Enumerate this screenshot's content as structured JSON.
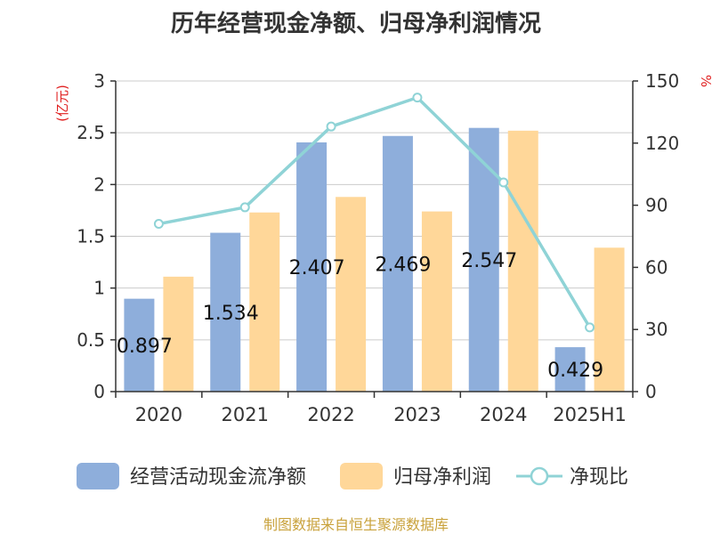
{
  "colors": {
    "bar1": "#8eaedb",
    "bar2": "#ffd799",
    "line": "#8fd3d6",
    "unit": "#e02020",
    "source": "#c9a23c"
  },
  "source_note": "制图数据来自恒生聚源数据库",
  "chart_data": {
    "type": "bar",
    "title": "历年经营现金净额、归母净利润情况",
    "categories": [
      "2020",
      "2021",
      "2022",
      "2023",
      "2024",
      "2025H1"
    ],
    "left_axis": {
      "unit": "(亿元)",
      "ylim": [
        0,
        3
      ],
      "ticks": [
        "0",
        "0.5",
        "1",
        "1.5",
        "2",
        "2.5",
        "3"
      ]
    },
    "right_axis": {
      "unit": "%",
      "ylim": [
        0,
        150
      ],
      "ticks": [
        "0",
        "30",
        "60",
        "90",
        "120",
        "150"
      ]
    },
    "series": [
      {
        "name": "经营活动现金流净额",
        "kind": "bar",
        "axis": "left",
        "values": [
          0.897,
          1.534,
          2.407,
          2.469,
          2.547,
          0.429
        ],
        "labels": [
          "0.897",
          "1.534",
          "2.407",
          "2.469",
          "2.547",
          "0.429"
        ]
      },
      {
        "name": "归母净利润",
        "kind": "bar",
        "axis": "left",
        "values": [
          1.11,
          1.73,
          1.88,
          1.74,
          2.52,
          1.39
        ]
      },
      {
        "name": "净现比",
        "kind": "line",
        "axis": "right",
        "values": [
          81,
          89,
          128,
          142,
          101,
          31
        ]
      }
    ],
    "grid": true,
    "legend_position": "bottom"
  }
}
